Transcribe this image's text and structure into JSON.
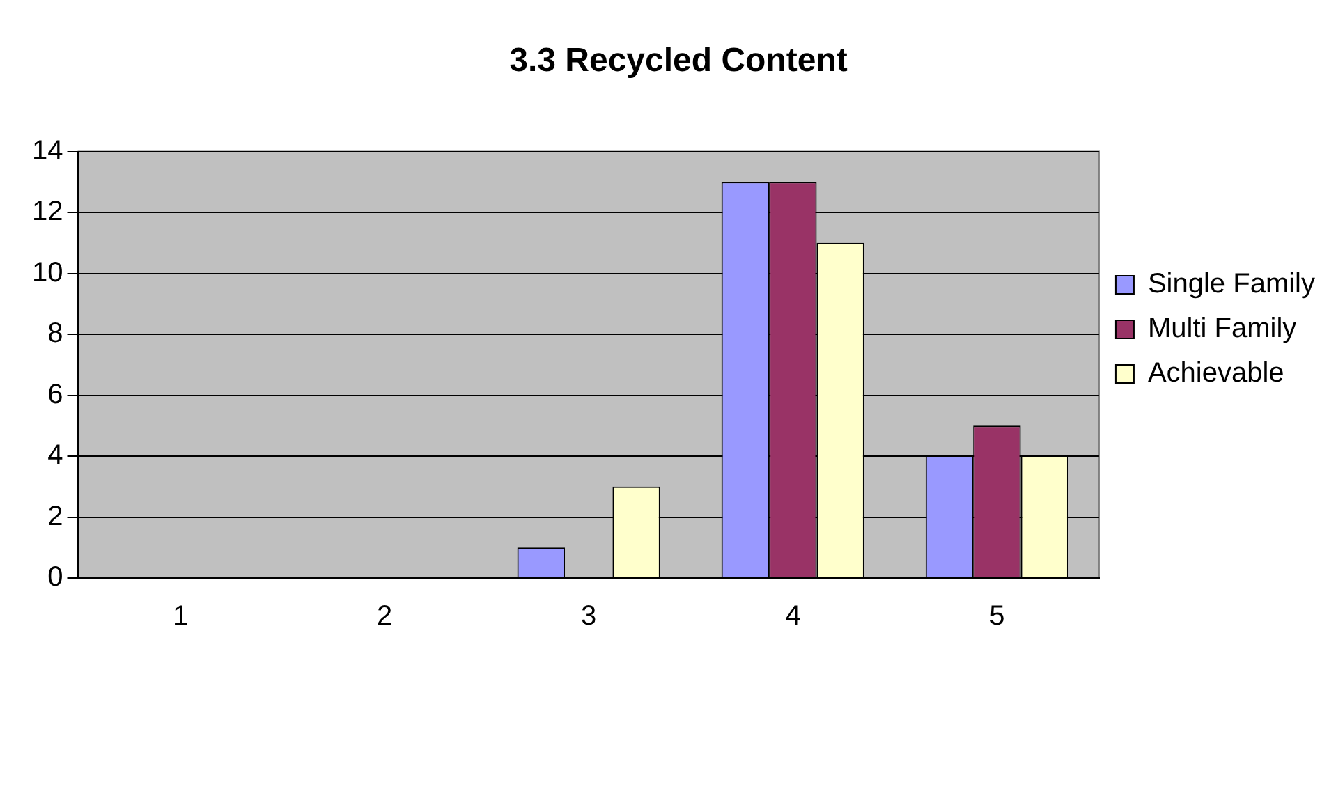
{
  "chart_data": {
    "type": "bar",
    "title": "3.3 Recycled Content",
    "categories": [
      "1",
      "2",
      "3",
      "4",
      "5"
    ],
    "series": [
      {
        "name": "Single Family",
        "color": "#9999ff",
        "values": [
          0,
          0,
          1,
          13,
          4
        ]
      },
      {
        "name": "Multi Family",
        "color": "#993366",
        "values": [
          0,
          0,
          0,
          13,
          5
        ]
      },
      {
        "name": "Achievable",
        "color": "#ffffcc",
        "values": [
          0,
          0,
          3,
          11,
          4
        ]
      }
    ],
    "ylim": [
      0,
      14
    ],
    "yticks": [
      0,
      2,
      4,
      6,
      8,
      10,
      12,
      14
    ],
    "grid": "y",
    "legend": "right"
  }
}
